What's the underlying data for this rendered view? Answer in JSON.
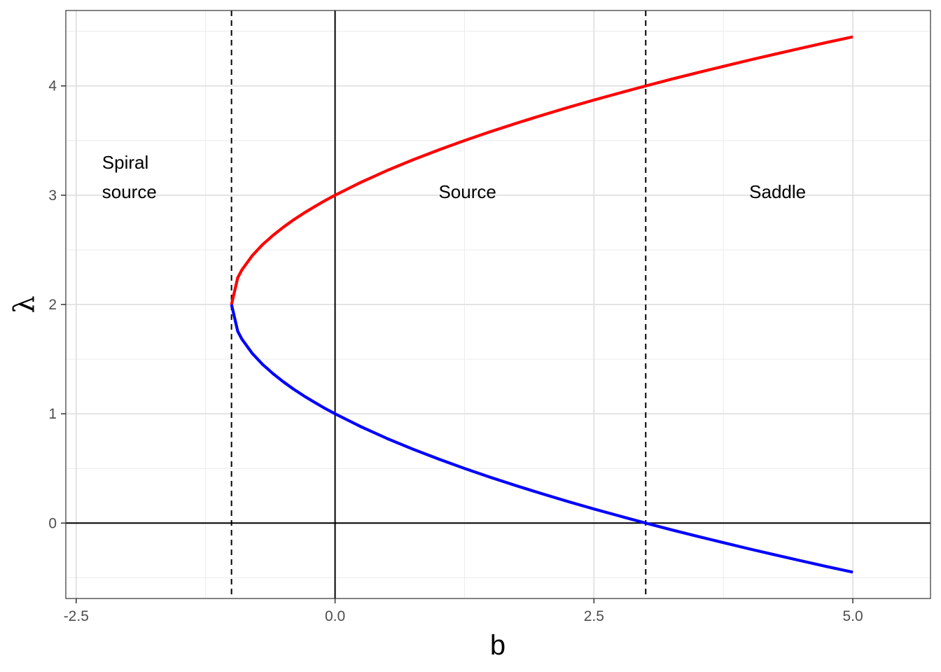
{
  "chart_data": {
    "type": "line",
    "title": "",
    "xlabel": "b",
    "ylabel": "λ",
    "xlim": [
      -2.6,
      5.75
    ],
    "ylim": [
      -0.69,
      4.69
    ],
    "x_ticks": [
      -2.5,
      0.0,
      2.5,
      5.0
    ],
    "x_tick_labels": [
      "-2.5",
      "0.0",
      "2.5",
      "5.0"
    ],
    "y_ticks": [
      0,
      1,
      2,
      3,
      4
    ],
    "y_tick_labels": [
      "0",
      "1",
      "2",
      "3",
      "4"
    ],
    "x_minor_grid": [
      -1.25,
      1.25,
      3.75
    ],
    "y_minor_grid": [
      -0.5,
      0.5,
      1.5,
      2.5,
      3.5,
      4.5
    ],
    "grid": true,
    "reference_lines": {
      "solid_horizontal": [
        0
      ],
      "solid_vertical": [
        0
      ],
      "dashed_vertical": [
        -1,
        3
      ]
    },
    "series": [
      {
        "color": "#ff0000",
        "points": [
          [
            -1.0,
            2.0
          ],
          [
            -0.94,
            2.245
          ],
          [
            -0.9,
            2.316
          ],
          [
            -0.8,
            2.447
          ],
          [
            -0.7,
            2.548
          ],
          [
            -0.6,
            2.632
          ],
          [
            -0.5,
            2.707
          ],
          [
            -0.4,
            2.775
          ],
          [
            -0.3,
            2.837
          ],
          [
            -0.2,
            2.894
          ],
          [
            -0.1,
            2.949
          ],
          [
            0.0,
            3.0
          ],
          [
            0.25,
            3.118
          ],
          [
            0.5,
            3.225
          ],
          [
            0.75,
            3.323
          ],
          [
            1.0,
            3.414
          ],
          [
            1.25,
            3.5
          ],
          [
            1.5,
            3.581
          ],
          [
            1.75,
            3.658
          ],
          [
            2.0,
            3.732
          ],
          [
            2.25,
            3.803
          ],
          [
            2.5,
            3.871
          ],
          [
            2.75,
            3.936
          ],
          [
            3.0,
            4.0
          ],
          [
            3.25,
            4.062
          ],
          [
            3.5,
            4.121
          ],
          [
            3.75,
            4.179
          ],
          [
            4.0,
            4.236
          ],
          [
            4.25,
            4.291
          ],
          [
            4.5,
            4.345
          ],
          [
            4.75,
            4.398
          ],
          [
            5.0,
            4.449
          ]
        ]
      },
      {
        "color": "#0000ff",
        "points": [
          [
            -1.0,
            2.0
          ],
          [
            -0.94,
            1.755
          ],
          [
            -0.9,
            1.684
          ],
          [
            -0.8,
            1.553
          ],
          [
            -0.7,
            1.452
          ],
          [
            -0.6,
            1.368
          ],
          [
            -0.5,
            1.293
          ],
          [
            -0.4,
            1.225
          ],
          [
            -0.3,
            1.163
          ],
          [
            -0.2,
            1.106
          ],
          [
            -0.1,
            1.051
          ],
          [
            0.0,
            1.0
          ],
          [
            0.25,
            0.882
          ],
          [
            0.5,
            0.775
          ],
          [
            0.75,
            0.677
          ],
          [
            1.0,
            0.586
          ],
          [
            1.25,
            0.5
          ],
          [
            1.5,
            0.419
          ],
          [
            1.75,
            0.342
          ],
          [
            2.0,
            0.268
          ],
          [
            2.25,
            0.197
          ],
          [
            2.5,
            0.129
          ],
          [
            2.75,
            0.064
          ],
          [
            3.0,
            0.0
          ],
          [
            3.25,
            -0.062
          ],
          [
            3.5,
            -0.121
          ],
          [
            3.75,
            -0.179
          ],
          [
            4.0,
            -0.236
          ],
          [
            4.25,
            -0.291
          ],
          [
            4.5,
            -0.345
          ],
          [
            4.75,
            -0.398
          ],
          [
            5.0,
            -0.449
          ]
        ]
      }
    ],
    "annotations": [
      {
        "text": "Spiral",
        "x": -2.25,
        "y": 3.3,
        "anchor": "start"
      },
      {
        "text": "source",
        "x": -2.25,
        "y": 3.03,
        "anchor": "start"
      },
      {
        "text": "Source",
        "x": 1.0,
        "y": 3.03,
        "anchor": "start"
      },
      {
        "text": "Saddle",
        "x": 4.0,
        "y": 3.03,
        "anchor": "start"
      }
    ]
  }
}
